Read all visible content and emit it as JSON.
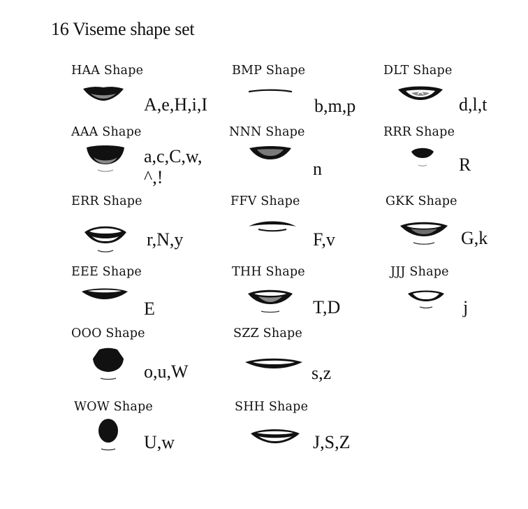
{
  "title": "16 Viseme shape set",
  "visemes": [
    {
      "name": "HAA Shape",
      "letters": "A,e,H,i,I"
    },
    {
      "name": "BMP Shape",
      "letters": "b,m,p"
    },
    {
      "name": "DLT Shape",
      "letters": "d,l,t"
    },
    {
      "name": "AAA Shape",
      "letters": "a,c,C,w,",
      "letters_line2": "^,!"
    },
    {
      "name": "NNN Shape",
      "letters": "n"
    },
    {
      "name": "RRR Shape",
      "letters": "R"
    },
    {
      "name": "ERR Shape",
      "letters": "r,N,y"
    },
    {
      "name": "FFV Shape",
      "letters": "F,v"
    },
    {
      "name": "GKK Shape",
      "letters": "G,k"
    },
    {
      "name": "EEE Shape",
      "letters": "E"
    },
    {
      "name": "THH Shape",
      "letters": "T,D"
    },
    {
      "name": "JJJ Shape",
      "letters": "j"
    },
    {
      "name": "OOO Shape",
      "letters": "o,u,W"
    },
    {
      "name": "SZZ Shape",
      "letters": "s,z"
    },
    {
      "name": "WOW Shape",
      "letters": "U,w"
    },
    {
      "name": "SHH Shape",
      "letters": "J,S,Z"
    }
  ]
}
